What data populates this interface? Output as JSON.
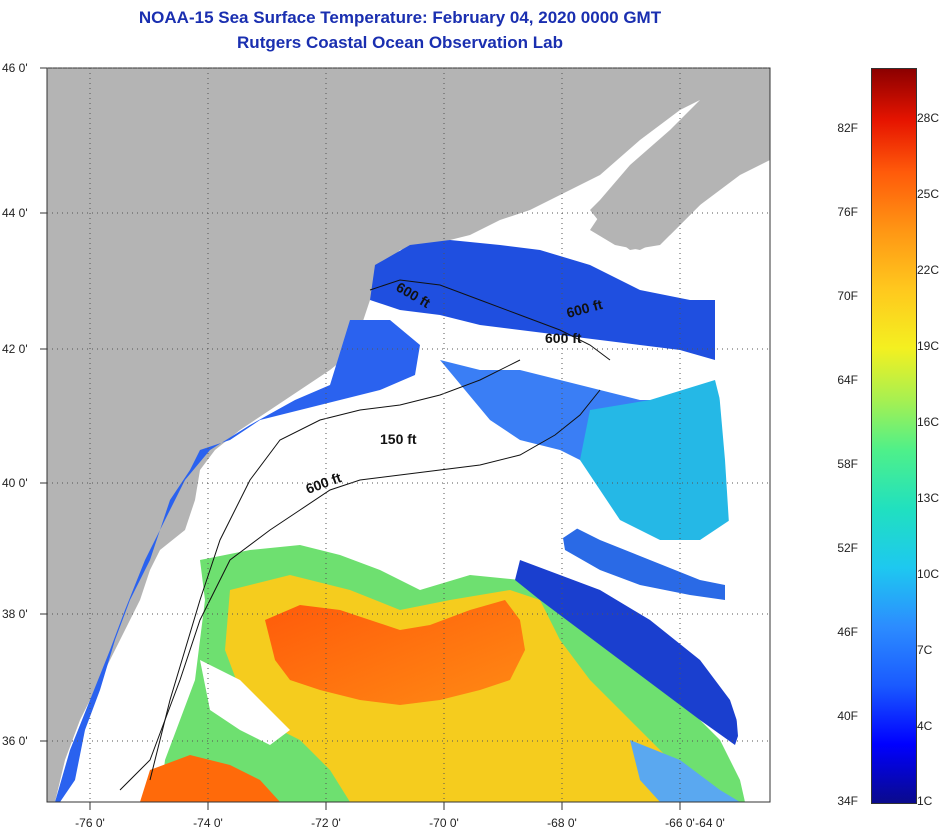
{
  "header": {
    "title": "NOAA-15 Sea Surface Temperature:  February 04, 2020 0000 GMT",
    "subtitle": "Rutgers Coastal Ocean Observation Lab"
  },
  "map": {
    "lat_labels": [
      "46 0'",
      "44 0'",
      "42 0'",
      "40 0'",
      "38 0'",
      "36 0'"
    ],
    "lon_labels": [
      "-76 0'",
      "-74 0'",
      "-72 0'",
      "-70 0'",
      "-68 0'",
      "-66 0'",
      "-64 0'"
    ],
    "depth_labels": [
      "600 ft",
      "600 ft",
      "600 ft",
      "150 ft",
      "600 ft"
    ],
    "colors": {
      "land": "#b4b4b4",
      "cloud": "#ffffff",
      "grid": "#555555"
    }
  },
  "colorbar": {
    "fahrenheit": [
      "82F",
      "76F",
      "70F",
      "64F",
      "58F",
      "52F",
      "46F",
      "40F",
      "34F"
    ],
    "celsius": [
      "28C",
      "25C",
      "22C",
      "19C",
      "16C",
      "13C",
      "10C",
      "7C",
      "4C",
      "1C"
    ]
  }
}
